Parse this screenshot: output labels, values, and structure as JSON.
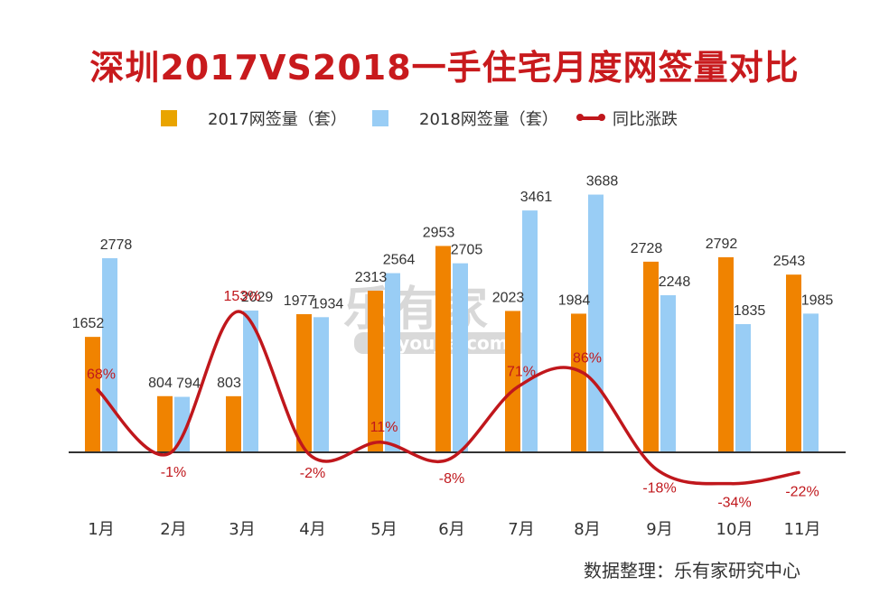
{
  "title": "深圳2017VS2018一手住宅月度网签量对比",
  "source": "数据整理：乐有家研究中心",
  "watermark": {
    "text": "乐有家",
    "sub": "Leyoujia.com"
  },
  "colors": {
    "s2017": "#f08300",
    "s2018": "#99cdf5",
    "line": "#c0171c",
    "axis": "#333333"
  },
  "chart_data": {
    "type": "bar",
    "categories": [
      "1月",
      "2月",
      "3月",
      "4月",
      "5月",
      "6月",
      "7月",
      "8月",
      "9月",
      "10月",
      "11月"
    ],
    "series": [
      {
        "name": "2017网签量（套）",
        "values": [
          1652,
          804,
          803,
          1977,
          2313,
          2953,
          2023,
          1984,
          2728,
          2792,
          2543
        ],
        "labels": [
          "1652",
          "804",
          "803",
          "1977",
          "2313",
          "2953",
          "2023",
          "1984",
          "2728",
          "2792",
          "2543"
        ]
      },
      {
        "name": "2018网签量（套）",
        "values": [
          2778,
          794,
          2029,
          1934,
          2564,
          2705,
          3461,
          3688,
          2248,
          1835,
          1985
        ],
        "labels": [
          "2778",
          "794",
          "2029",
          "1934",
          "2564",
          "2705",
          "3461",
          "3688",
          "2248",
          "1835",
          "1985"
        ]
      }
    ],
    "line_series": {
      "name": "同比涨跌",
      "values": [
        68,
        -1,
        153,
        -2,
        11,
        -8,
        71,
        86,
        -18,
        -34,
        -22
      ],
      "labels": [
        "68%",
        "-1%",
        "153%",
        "-2%",
        "11%",
        "-8%",
        "71%",
        "86%",
        "-18%",
        "-34%",
        "-22%"
      ]
    },
    "grid": false,
    "legend_position": "top"
  }
}
